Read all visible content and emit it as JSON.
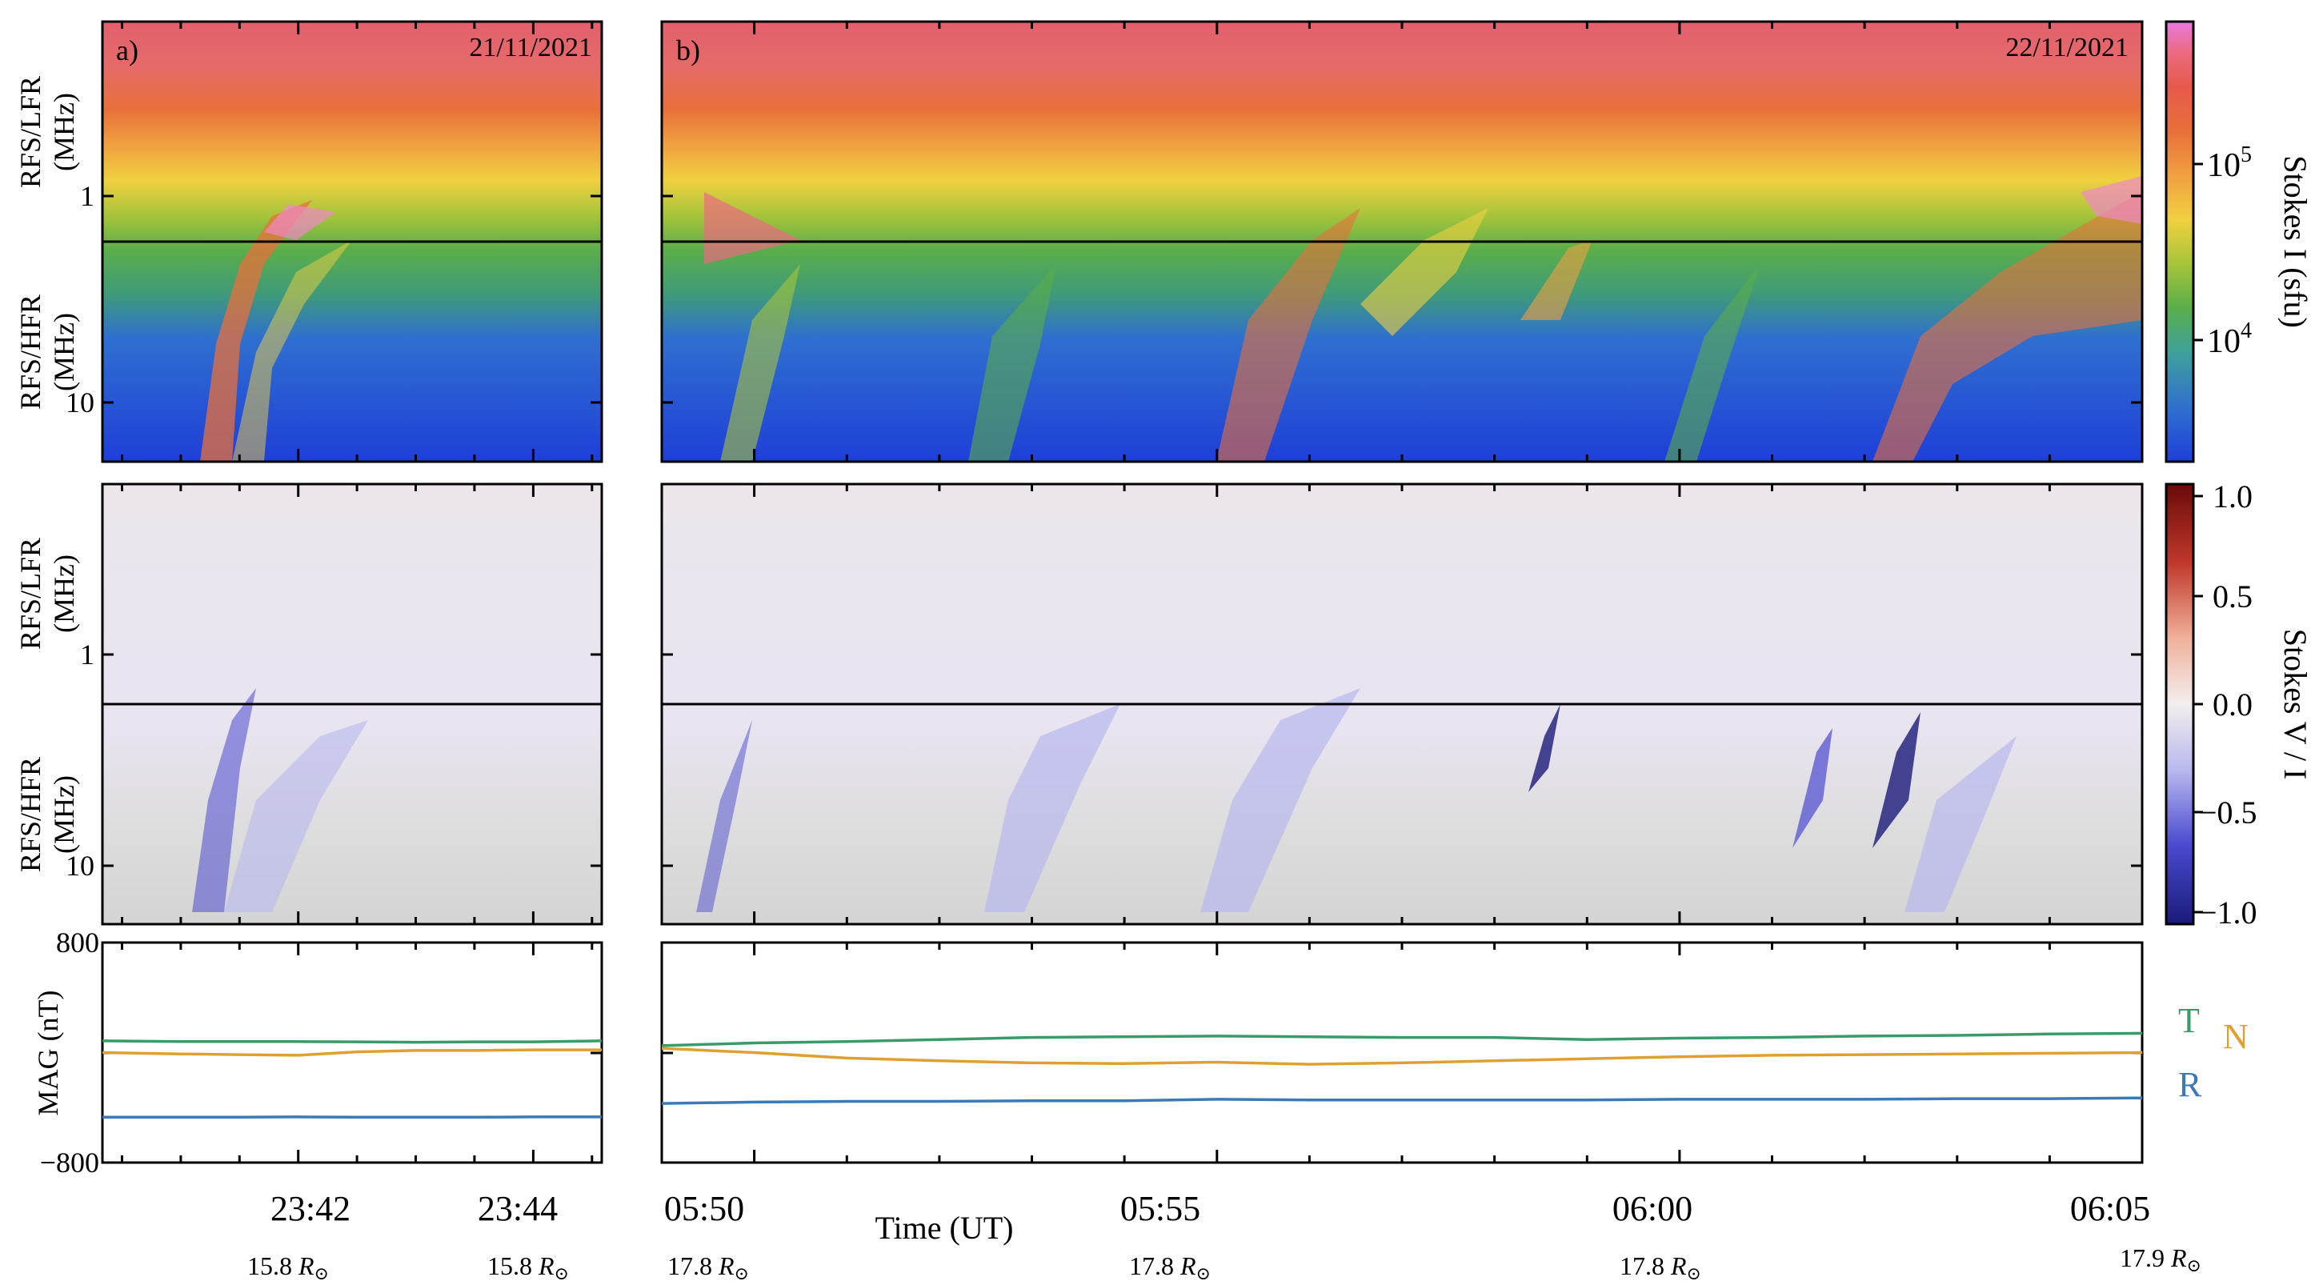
{
  "panels": {
    "left": {
      "label": "a)",
      "date": "21/11/2021",
      "time_ticks": [
        "23:42",
        "23:44"
      ],
      "distance_value": "15.8",
      "distance_unit": "R",
      "distance_sub": "⊙",
      "distance_labels": [
        "15.8",
        "15.8"
      ]
    },
    "right": {
      "label": "b)",
      "date": "22/11/2021",
      "time_ticks": [
        "05:50",
        "05:55",
        "06:00",
        "06:05"
      ],
      "distance_labels": [
        "17.8",
        "17.8",
        "17.8",
        "17.9"
      ]
    }
  },
  "row_labels": {
    "lfr_1": "RFS/LFR",
    "lfr_2": "(MHz)",
    "hfr_1": "RFS/HFR",
    "hfr_2": "(MHz)",
    "mag": "MAG (nT)"
  },
  "freq_ticks": {
    "one": "1",
    "ten": "10"
  },
  "mag_ticks": {
    "top": "800",
    "bottom": "−800"
  },
  "xlabel": "Time (UT)",
  "colorbars": {
    "stokes_i": {
      "label": "Stokes I (sfu)",
      "tick1_base": "10",
      "tick1_exp": "5",
      "tick2_base": "10",
      "tick2_exp": "4",
      "colors": [
        "#1f3fd8",
        "#2f6fd0",
        "#3fa19a",
        "#5aae4a",
        "#a7c43a",
        "#f0d040",
        "#f0a040",
        "#e8703a",
        "#e65a4a",
        "#ec6a80",
        "#f088c8",
        "#e87ae0"
      ]
    },
    "stokes_v": {
      "label": "Stokes V / I",
      "ticks": [
        "1.0",
        "0.5",
        "0.0",
        "−0.5",
        "−1.0"
      ],
      "colors": [
        "#6a0a0a",
        "#c0392b",
        "#f0b09a",
        "#f2eeee",
        "#b8b8ee",
        "#4a4ad0",
        "#1a1a7a"
      ]
    }
  },
  "mag_legend": {
    "t": "T",
    "n": "N",
    "r": "R"
  },
  "series_colors": {
    "t": "#3a9a6a",
    "n": "#e0a030",
    "r": "#3a7ab8"
  },
  "chart_data": {
    "type": "line",
    "title": "",
    "xlabel": "Time (UT)",
    "ylabel": "MAG (nT)",
    "ylim": [
      -800,
      800
    ],
    "panels": [
      {
        "date": "21/11/2021",
        "x": [
          "23:40:20",
          "23:41:00",
          "23:41:30",
          "23:42:00",
          "23:42:30",
          "23:43:00",
          "23:43:30",
          "23:44:00",
          "23:44:35"
        ],
        "series": [
          {
            "name": "T",
            "values": [
              85,
              80,
              80,
              80,
              78,
              75,
              78,
              78,
              85
            ]
          },
          {
            "name": "N",
            "values": [
              0,
              -10,
              -15,
              -20,
              5,
              15,
              15,
              20,
              20
            ]
          },
          {
            "name": "R",
            "values": [
              -470,
              -470,
              -470,
              -468,
              -470,
              -470,
              -470,
              -468,
              -468
            ]
          }
        ]
      },
      {
        "date": "22/11/2021",
        "x": [
          "05:49",
          "05:50",
          "05:51",
          "05:52",
          "05:53",
          "05:54",
          "05:55",
          "05:56",
          "05:57",
          "05:58",
          "05:59",
          "06:00",
          "06:01",
          "06:02",
          "06:03",
          "06:04",
          "06:05"
        ],
        "series": [
          {
            "name": "T",
            "values": [
              50,
              70,
              80,
              95,
              110,
              115,
              120,
              115,
              110,
              110,
              95,
              105,
              110,
              120,
              125,
              135,
              140
            ]
          },
          {
            "name": "N",
            "values": [
              30,
              0,
              -40,
              -60,
              -75,
              -80,
              -70,
              -85,
              -75,
              -60,
              -45,
              -30,
              -20,
              -15,
              -10,
              -5,
              0
            ]
          },
          {
            "name": "R",
            "values": [
              -370,
              -360,
              -355,
              -355,
              -350,
              -350,
              -340,
              -345,
              -345,
              -345,
              -345,
              -340,
              -340,
              -340,
              -335,
              -335,
              -330
            ]
          }
        ]
      }
    ]
  }
}
